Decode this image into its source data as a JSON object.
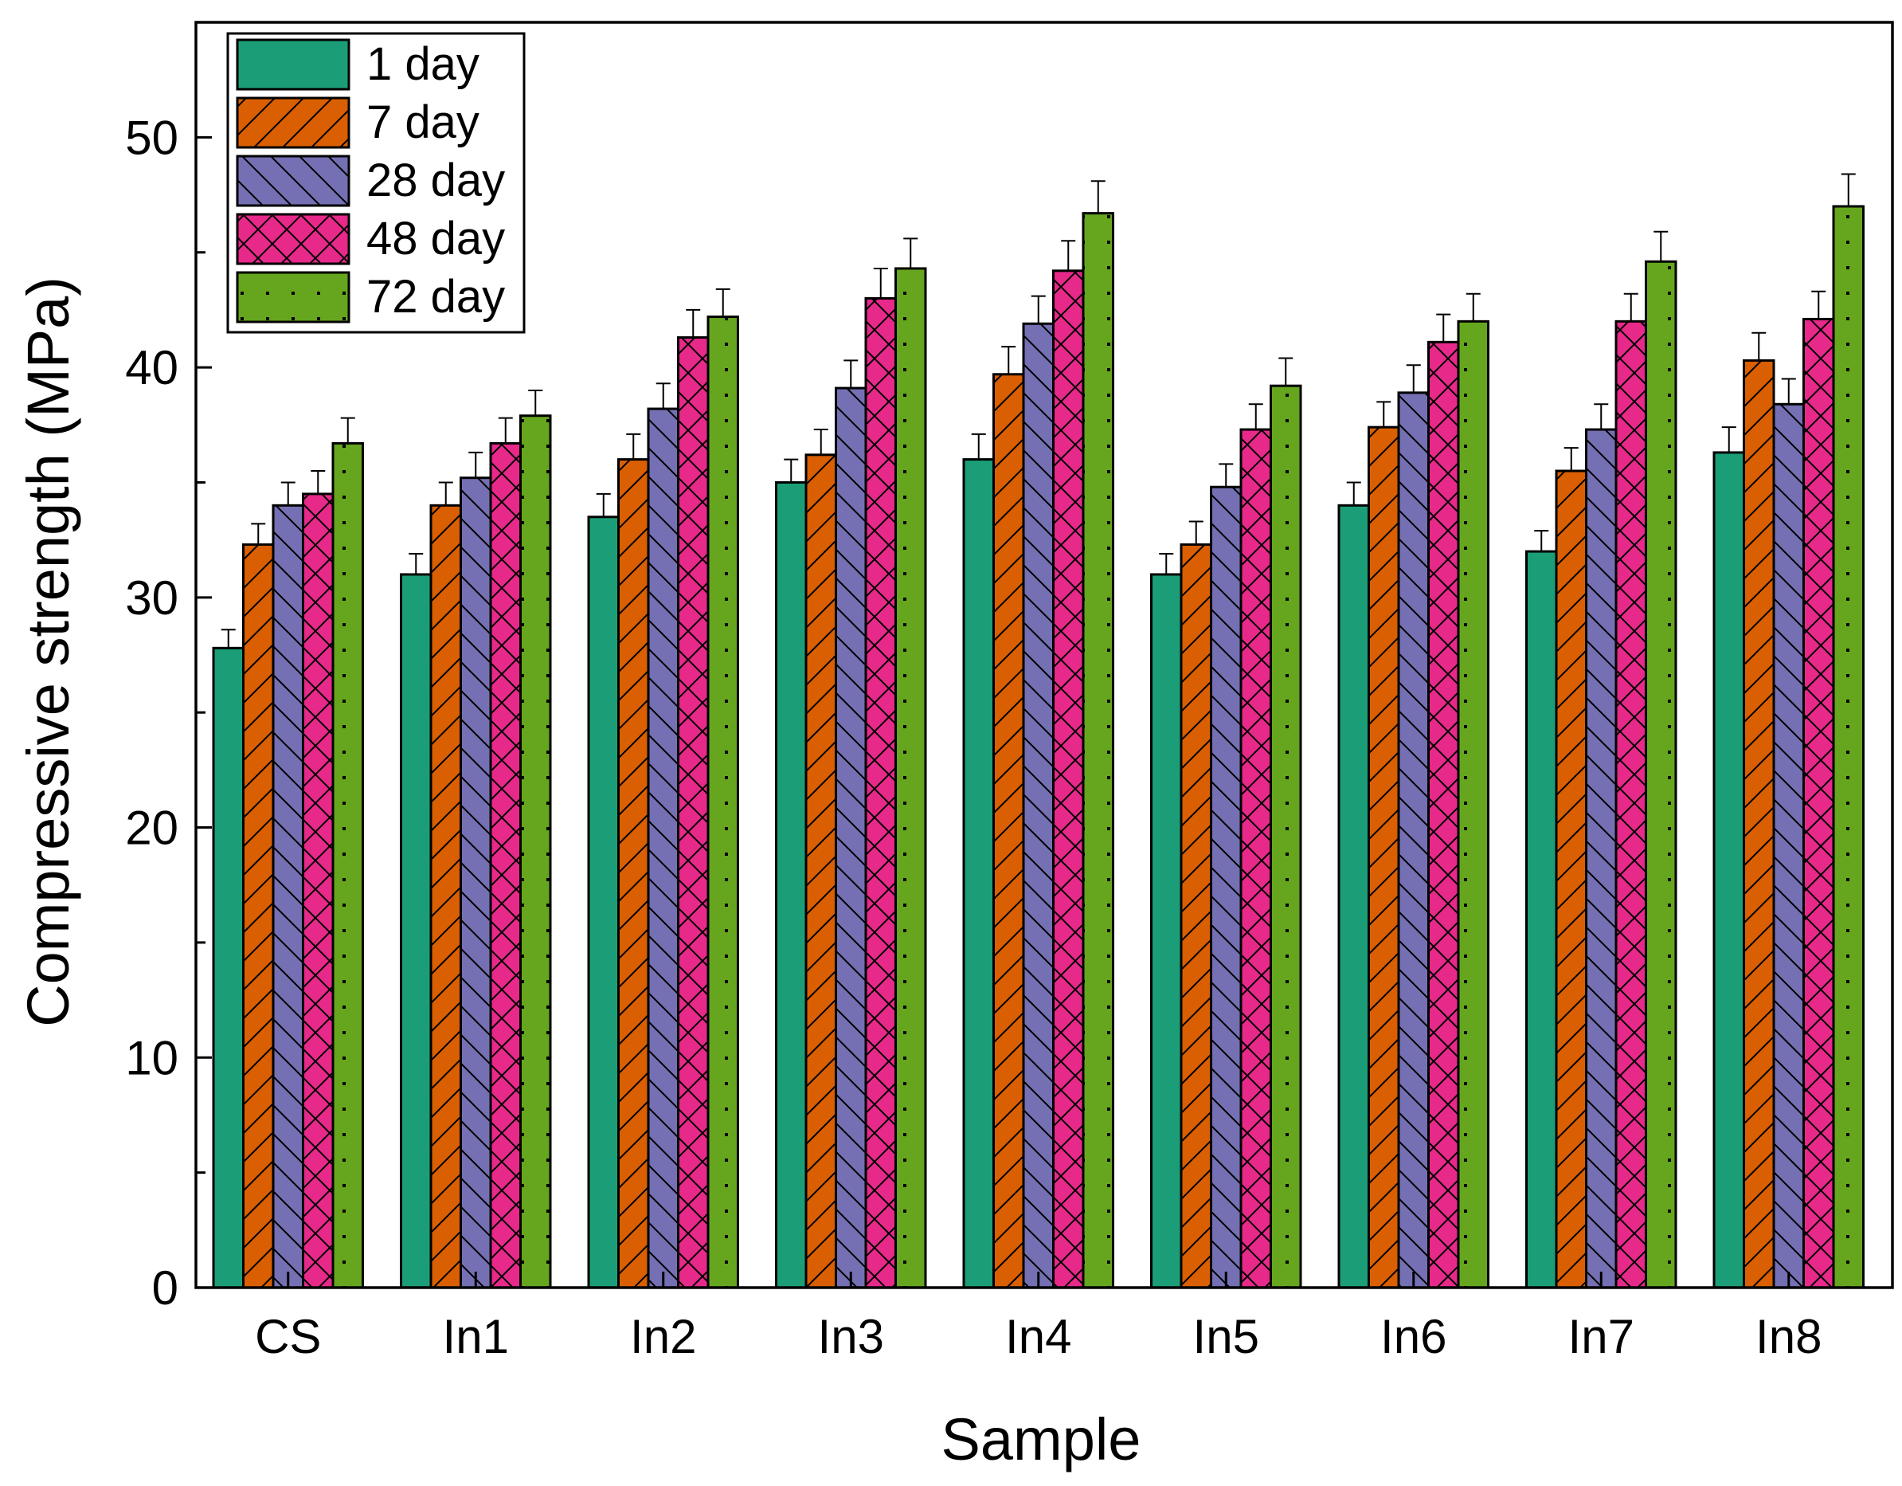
{
  "chart_data": {
    "type": "bar",
    "title": "",
    "xlabel": "Sample",
    "ylabel": "Compressive strength (MPa)",
    "ylim": [
      0,
      55
    ],
    "yticks": [
      0,
      10,
      20,
      30,
      40,
      50
    ],
    "ytick_labels": [
      "0",
      "10",
      "20",
      "30",
      "40",
      "50"
    ],
    "legend_position": "top-left",
    "grid": false,
    "categories": [
      "CS",
      "In1",
      "In2",
      "In3",
      "In4",
      "In5",
      "In6",
      "In7",
      "In8"
    ],
    "series": [
      {
        "name": "1 day",
        "color": "#1b9e77",
        "pattern": "solid",
        "values": [
          27.8,
          31.0,
          33.5,
          35.0,
          36.0,
          31.0,
          34.0,
          32.0,
          36.3
        ],
        "errors": [
          0.8,
          0.9,
          1.0,
          1.0,
          1.1,
          0.9,
          1.0,
          0.9,
          1.1
        ]
      },
      {
        "name": "7 day",
        "color": "#d95f02",
        "pattern": "forward-diagonal",
        "values": [
          32.3,
          34.0,
          36.0,
          36.2,
          39.7,
          32.3,
          37.4,
          35.5,
          40.3
        ],
        "errors": [
          0.9,
          1.0,
          1.1,
          1.1,
          1.2,
          1.0,
          1.1,
          1.0,
          1.2
        ]
      },
      {
        "name": "28 day",
        "color": "#7570b3",
        "pattern": "back-diagonal",
        "values": [
          34.0,
          35.2,
          38.2,
          39.1,
          41.9,
          34.8,
          38.9,
          37.3,
          38.4
        ],
        "errors": [
          1.0,
          1.1,
          1.1,
          1.2,
          1.2,
          1.0,
          1.2,
          1.1,
          1.1
        ]
      },
      {
        "name": "48 day",
        "color": "#e7298a",
        "pattern": "cross-hatch",
        "values": [
          34.5,
          36.7,
          41.3,
          43.0,
          44.2,
          37.3,
          41.1,
          42.0,
          42.1
        ],
        "errors": [
          1.0,
          1.1,
          1.2,
          1.3,
          1.3,
          1.1,
          1.2,
          1.2,
          1.2
        ]
      },
      {
        "name": "72 day",
        "color": "#66a61e",
        "pattern": "dots",
        "values": [
          36.7,
          37.9,
          42.2,
          44.3,
          46.7,
          39.2,
          42.0,
          44.6,
          47.0
        ],
        "errors": [
          1.1,
          1.1,
          1.2,
          1.3,
          1.4,
          1.2,
          1.2,
          1.3,
          1.4
        ]
      }
    ]
  }
}
